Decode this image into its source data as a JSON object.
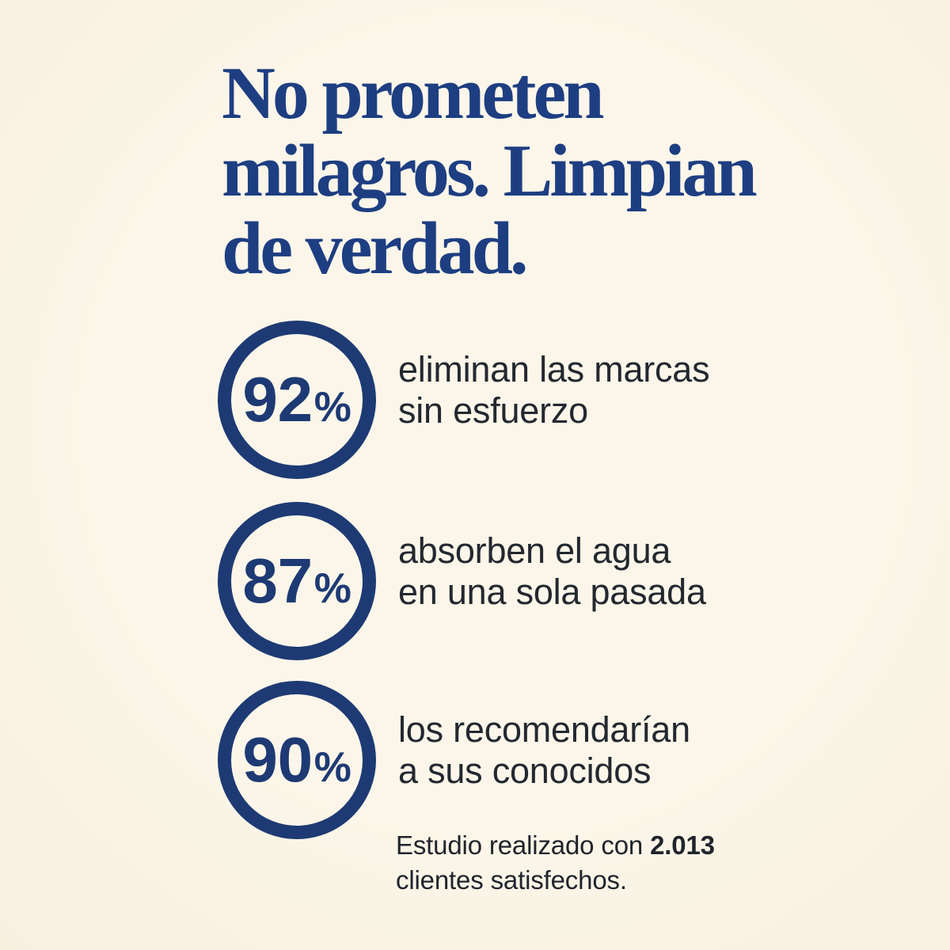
{
  "page": {
    "background_color": "#FAF4E6",
    "accent_navy": "#1E3A74",
    "headline_navy": "#1E3E82",
    "body_text_color": "#232830"
  },
  "headline": {
    "full_text": "No prometen milagros. Limpian de verdad.",
    "lines": [
      "No prometen",
      "milagros. Limpian",
      "de verdad."
    ]
  },
  "stats": [
    {
      "value": "92",
      "unit": "%",
      "label_line1": "eliminan las marcas",
      "label_line2": "sin esfuerzo"
    },
    {
      "value": "87",
      "unit": "%",
      "label_line1": "absorben el agua",
      "label_line2": "en una sola pasada"
    },
    {
      "value": "90",
      "unit": "%",
      "label_line1": "los recomendarían",
      "label_line2": "a sus conocidos"
    }
  ],
  "footnote": {
    "line1_prefix": "Estudio realizado con ",
    "line1_bold": "2.013",
    "line2": "clientes satisfechos."
  }
}
